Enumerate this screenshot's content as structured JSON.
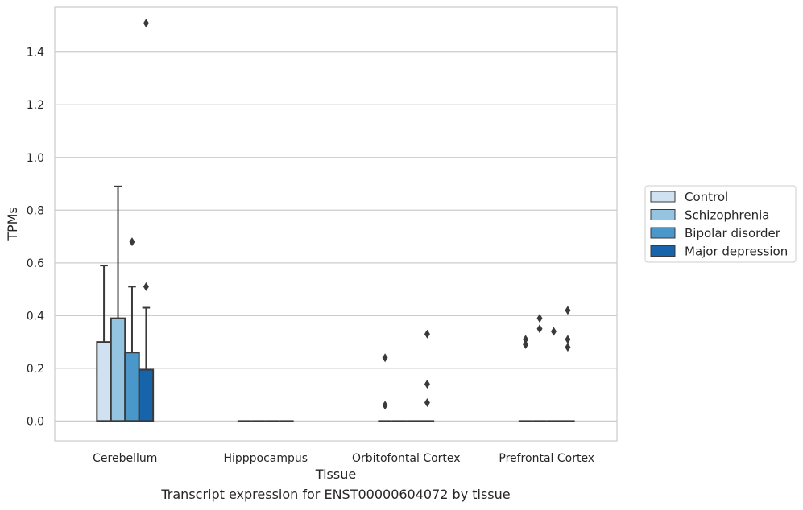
{
  "caption": "Transcript expression for ENST00000604072 by tissue",
  "chart_data": {
    "type": "box",
    "xlabel": "Tissue",
    "ylabel": "TPMs",
    "ylim": [
      -0.075,
      1.57
    ],
    "yticks": [
      0.0,
      0.2,
      0.4,
      0.6,
      0.8,
      1.0,
      1.2,
      1.4
    ],
    "ytick_labels": [
      "0.0",
      "0.2",
      "0.4",
      "0.6",
      "0.8",
      "1.0",
      "1.2",
      "1.4"
    ],
    "grid": "horizontal",
    "legend_position": "right",
    "categories": [
      "Cerebellum",
      "Hipppocampus",
      "Orbitofontal Cortex",
      "Prefrontal Cortex"
    ],
    "series": [
      {
        "name": "Control",
        "color": "#d0e1f2",
        "boxes": [
          {
            "q1": 0.0,
            "median": 0.0,
            "q3": 0.3,
            "whisker_low": 0.0,
            "whisker_high": 0.59,
            "outliers": []
          },
          {
            "q1": 0.0,
            "median": 0.0,
            "q3": 0.0,
            "whisker_low": 0.0,
            "whisker_high": 0.0,
            "outliers": []
          },
          {
            "q1": 0.0,
            "median": 0.0,
            "q3": 0.0,
            "whisker_low": 0.0,
            "whisker_high": 0.0,
            "outliers": [
              0.24,
              0.06
            ]
          },
          {
            "q1": 0.0,
            "median": 0.0,
            "q3": 0.0,
            "whisker_low": 0.0,
            "whisker_high": 0.0,
            "outliers": [
              0.31,
              0.29
            ]
          }
        ]
      },
      {
        "name": "Schizophrenia",
        "color": "#94c4df",
        "boxes": [
          {
            "q1": 0.0,
            "median": 0.0,
            "q3": 0.39,
            "whisker_low": 0.0,
            "whisker_high": 0.89,
            "outliers": []
          },
          {
            "q1": 0.0,
            "median": 0.0,
            "q3": 0.0,
            "whisker_low": 0.0,
            "whisker_high": 0.0,
            "outliers": []
          },
          {
            "q1": 0.0,
            "median": 0.0,
            "q3": 0.0,
            "whisker_low": 0.0,
            "whisker_high": 0.0,
            "outliers": []
          },
          {
            "q1": 0.0,
            "median": 0.0,
            "q3": 0.0,
            "whisker_low": 0.0,
            "whisker_high": 0.0,
            "outliers": [
              0.39,
              0.35
            ]
          }
        ]
      },
      {
        "name": "Bipolar disorder",
        "color": "#4a98c9",
        "boxes": [
          {
            "q1": 0.0,
            "median": 0.0,
            "q3": 0.26,
            "whisker_low": 0.0,
            "whisker_high": 0.51,
            "outliers": [
              0.68
            ]
          },
          {
            "q1": 0.0,
            "median": 0.0,
            "q3": 0.0,
            "whisker_low": 0.0,
            "whisker_high": 0.0,
            "outliers": []
          },
          {
            "q1": 0.0,
            "median": 0.0,
            "q3": 0.0,
            "whisker_low": 0.0,
            "whisker_high": 0.0,
            "outliers": []
          },
          {
            "q1": 0.0,
            "median": 0.0,
            "q3": 0.0,
            "whisker_low": 0.0,
            "whisker_high": 0.0,
            "outliers": [
              0.34
            ]
          }
        ]
      },
      {
        "name": "Major depression",
        "color": "#1764ab",
        "boxes": [
          {
            "q1": 0.0,
            "median": 0.0,
            "q3": 0.195,
            "whisker_low": 0.0,
            "whisker_high": 0.43,
            "outliers": [
              1.51,
              0.51
            ]
          },
          {
            "q1": 0.0,
            "median": 0.0,
            "q3": 0.0,
            "whisker_low": 0.0,
            "whisker_high": 0.0,
            "outliers": []
          },
          {
            "q1": 0.0,
            "median": 0.0,
            "q3": 0.0,
            "whisker_low": 0.0,
            "whisker_high": 0.0,
            "outliers": [
              0.33,
              0.14,
              0.07
            ]
          },
          {
            "q1": 0.0,
            "median": 0.0,
            "q3": 0.0,
            "whisker_low": 0.0,
            "whisker_high": 0.0,
            "outliers": [
              0.42,
              0.31,
              0.28
            ]
          }
        ]
      }
    ]
  }
}
